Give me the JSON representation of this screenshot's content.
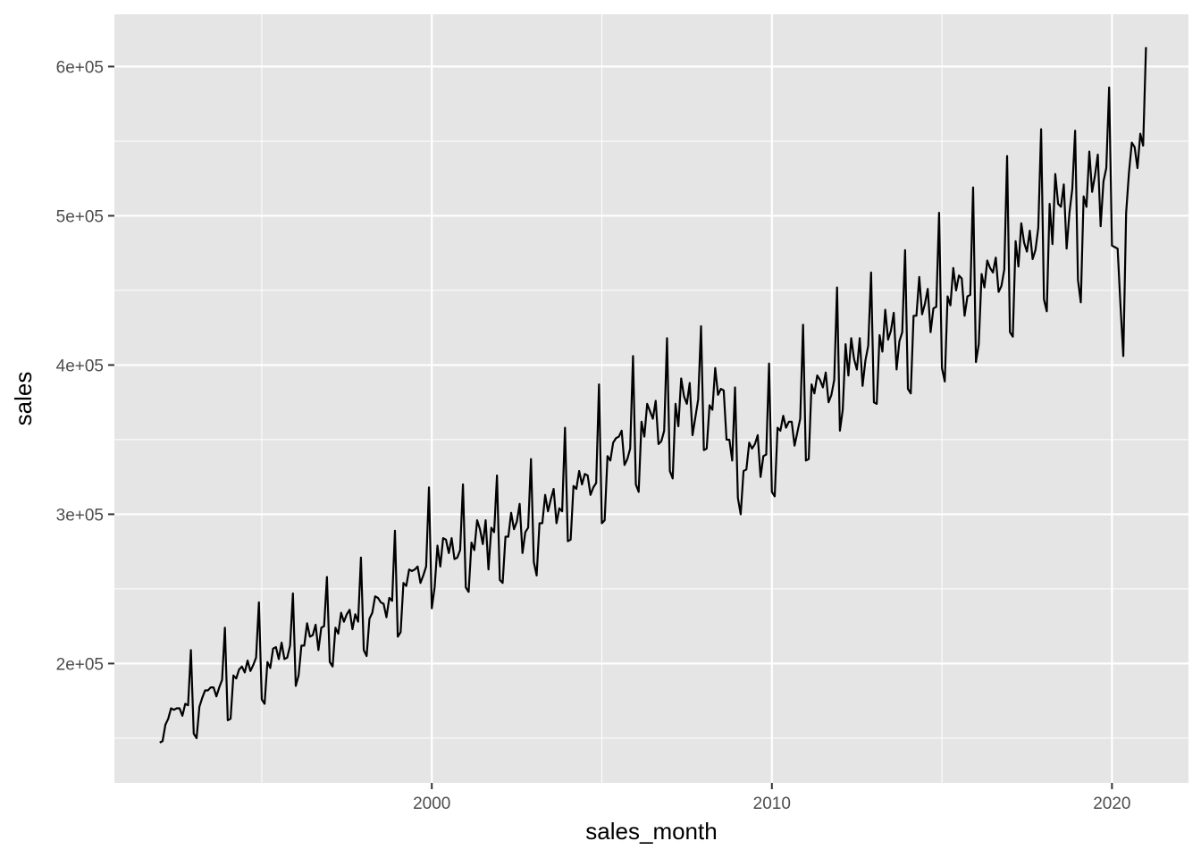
{
  "chart_data": {
    "type": "line",
    "title": "",
    "xlabel": "sales_month",
    "ylabel": "sales",
    "x_ticks": [
      {
        "value": 2000,
        "label": "2000"
      },
      {
        "value": 2010,
        "label": "2010"
      },
      {
        "value": 2020,
        "label": "2020"
      }
    ],
    "y_ticks": [
      {
        "value": 200000,
        "label": "2e+05"
      },
      {
        "value": 300000,
        "label": "3e+05"
      },
      {
        "value": 400000,
        "label": "4e+05"
      },
      {
        "value": 500000,
        "label": "5e+05"
      },
      {
        "value": 600000,
        "label": "6e+05"
      }
    ],
    "xlim": [
      "1990-09-01",
      "2022-04-01"
    ],
    "ylim": [
      120000,
      635000
    ],
    "grid": true,
    "colors": {
      "panel": "#e5e5e5",
      "grid": "#ffffff",
      "line": "#000000"
    },
    "series": [
      {
        "start": "1992-01",
        "values": [
          147000,
          148000,
          159000,
          163000,
          170000,
          169000,
          170000,
          170000,
          165000,
          173000,
          172000,
          209000,
          153000,
          150000,
          171000,
          177000,
          182000,
          182000,
          184000,
          184000,
          178000,
          184000,
          189000,
          224000,
          162000,
          163000,
          192000,
          190000,
          196000,
          198000,
          194000,
          202000,
          195000,
          199000,
          204000,
          241000,
          176000,
          173000,
          201000,
          197000,
          210000,
          211000,
          203000,
          214000,
          203000,
          204000,
          212000,
          247000,
          185000,
          192000,
          212000,
          212000,
          227000,
          218000,
          219000,
          226000,
          209000,
          224000,
          225000,
          258000,
          201000,
          198000,
          224000,
          220000,
          234000,
          228000,
          233000,
          236000,
          223000,
          233000,
          228000,
          271000,
          209000,
          205000,
          230000,
          234000,
          245000,
          244000,
          241000,
          240000,
          231000,
          244000,
          242000,
          289000,
          218000,
          221000,
          254000,
          252000,
          263000,
          262000,
          263000,
          265000,
          254000,
          259000,
          265000,
          318000,
          237000,
          251000,
          279000,
          265000,
          284000,
          283000,
          274000,
          284000,
          270000,
          271000,
          276000,
          320000,
          251000,
          248000,
          281000,
          276000,
          296000,
          290000,
          280000,
          296000,
          263000,
          291000,
          288000,
          326000,
          256000,
          254000,
          285000,
          285000,
          301000,
          290000,
          295000,
          307000,
          274000,
          288000,
          291000,
          337000,
          268000,
          259000,
          294000,
          294000,
          313000,
          302000,
          310000,
          317000,
          294000,
          304000,
          302000,
          358000,
          282000,
          283000,
          319000,
          317000,
          329000,
          320000,
          327000,
          326000,
          313000,
          318000,
          321000,
          387000,
          294000,
          296000,
          339000,
          336000,
          348000,
          351000,
          352000,
          356000,
          333000,
          337000,
          344000,
          406000,
          320000,
          315000,
          362000,
          352000,
          374000,
          369000,
          364000,
          376000,
          347000,
          349000,
          356000,
          418000,
          329000,
          324000,
          374000,
          359000,
          391000,
          379000,
          374000,
          388000,
          353000,
          365000,
          377000,
          426000,
          343000,
          344000,
          373000,
          370000,
          398000,
          380000,
          384000,
          383000,
          350000,
          350000,
          336000,
          385000,
          311000,
          300000,
          329000,
          330000,
          348000,
          344000,
          347000,
          353000,
          325000,
          339000,
          340000,
          401000,
          315000,
          312000,
          358000,
          356000,
          366000,
          358000,
          362000,
          362000,
          346000,
          355000,
          364000,
          427000,
          336000,
          337000,
          387000,
          381000,
          393000,
          390000,
          385000,
          395000,
          375000,
          380000,
          390000,
          452000,
          356000,
          370000,
          414000,
          393000,
          418000,
          404000,
          397000,
          418000,
          386000,
          403000,
          413000,
          462000,
          375000,
          374000,
          420000,
          409000,
          437000,
          417000,
          423000,
          435000,
          397000,
          416000,
          422000,
          477000,
          384000,
          381000,
          433000,
          433000,
          459000,
          434000,
          441000,
          451000,
          422000,
          438000,
          439000,
          502000,
          398000,
          389000,
          446000,
          440000,
          465000,
          450000,
          460000,
          458000,
          433000,
          446000,
          447000,
          519000,
          402000,
          414000,
          461000,
          452000,
          470000,
          465000,
          462000,
          472000,
          449000,
          453000,
          464000,
          540000,
          422000,
          419000,
          483000,
          466000,
          495000,
          482000,
          476000,
          490000,
          471000,
          477000,
          492000,
          558000,
          444000,
          436000,
          508000,
          481000,
          528000,
          508000,
          506000,
          521000,
          478000,
          502000,
          518000,
          557000,
          457000,
          442000,
          513000,
          506000,
          543000,
          516000,
          527000,
          541000,
          493000,
          523000,
          532000,
          586000,
          480000,
          479000,
          478000,
          440000,
          406000,
          502000,
          529000,
          549000,
          546000,
          532000,
          555000,
          547000,
          613000
        ]
      }
    ]
  }
}
